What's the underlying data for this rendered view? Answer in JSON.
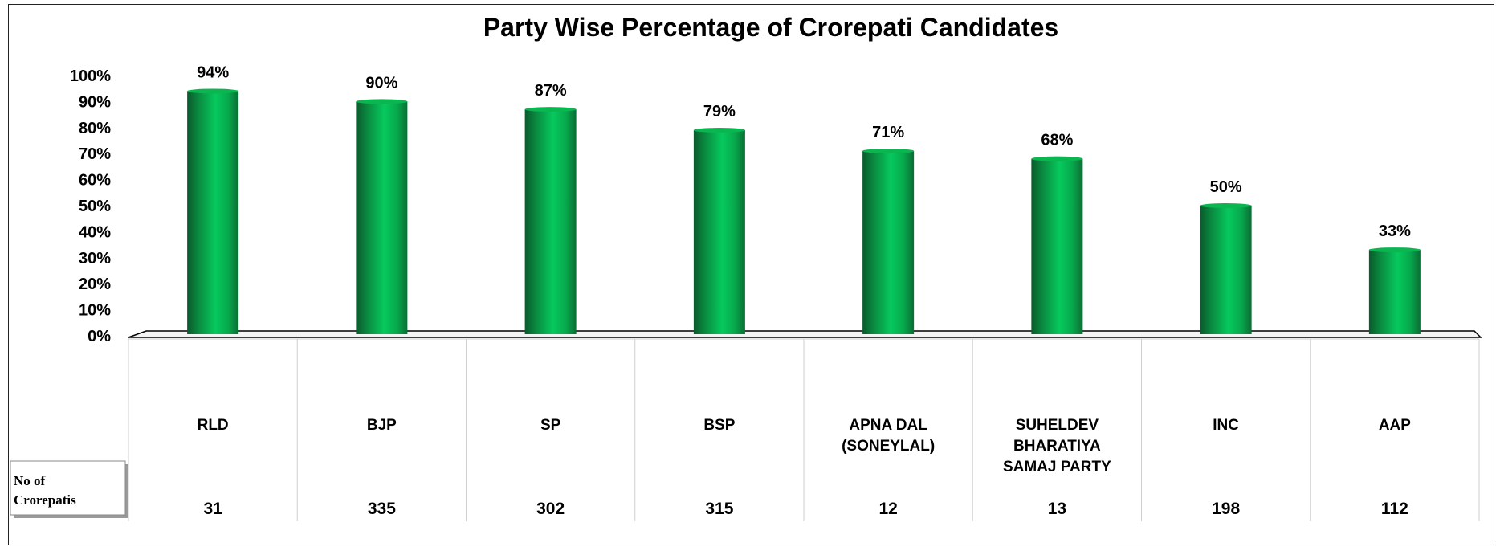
{
  "chart_data": {
    "type": "bar",
    "title": "Party Wise Percentage of Crorepati Candidates",
    "xlabel": "",
    "ylabel": "",
    "ylim": [
      0,
      100
    ],
    "y_tick_labels": [
      "0%",
      "10%",
      "20%",
      "30%",
      "40%",
      "50%",
      "60%",
      "70%",
      "80%",
      "90%",
      "100%"
    ],
    "categories": [
      [
        "RLD"
      ],
      [
        "BJP"
      ],
      [
        "SP"
      ],
      [
        "BSP"
      ],
      [
        "APNA DAL",
        "(SONEYLAL)"
      ],
      [
        "SUHELDEV",
        "BHARATIYA",
        "SAMAJ PARTY"
      ],
      [
        "INC"
      ],
      [
        "AAP"
      ]
    ],
    "values": [
      94,
      90,
      87,
      79,
      71,
      68,
      50,
      33
    ],
    "data_labels": [
      "94%",
      "90%",
      "87%",
      "79%",
      "71%",
      "68%",
      "50%",
      "33%"
    ],
    "table_row": {
      "header": [
        "No of",
        "Crorepatis"
      ],
      "values": [
        "31",
        "335",
        "302",
        "315",
        "12",
        "13",
        "198",
        "112"
      ]
    },
    "grid": false,
    "legend": "none",
    "bar_color": "#00b050"
  }
}
